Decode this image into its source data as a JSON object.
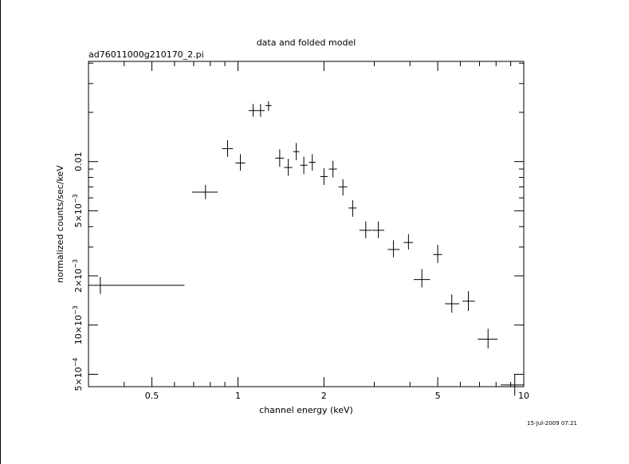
{
  "chart_data": {
    "type": "scatter",
    "title": "data and folded model",
    "subtitle": "ad76011000g210170_2.pi",
    "xlabel": "channel energy (keV)",
    "ylabel": "normalized counts/sec/keV",
    "timestamp": "15-Jul-2009 07:21",
    "x_scale": "log",
    "y_scale": "log",
    "xlim": [
      0.3,
      10
    ],
    "ylim": [
      0.00042,
      0.041
    ],
    "x_major_ticks": [
      {
        "value": 0.5,
        "label": "0.5"
      },
      {
        "value": 1,
        "label": "1"
      },
      {
        "value": 2,
        "label": "2"
      },
      {
        "value": 5,
        "label": "5"
      },
      {
        "value": 10,
        "label": "10"
      }
    ],
    "x_minor_ticks": [
      0.4,
      0.6,
      0.7,
      0.8,
      0.9,
      3,
      4,
      6,
      7,
      8,
      9
    ],
    "y_major_ticks": [
      {
        "value": 0.0005,
        "mant": "5",
        "exp": "−4"
      },
      {
        "value": 0.001,
        "mant": "10",
        "exp": "−3"
      },
      {
        "value": 0.002,
        "mant": "2",
        "exp": "−3"
      },
      {
        "value": 0.005,
        "mant": "5",
        "exp": "−3"
      },
      {
        "value": 0.01,
        "text": "0.01"
      }
    ],
    "y_minor_ticks": [
      0.003,
      0.004,
      0.006,
      0.007,
      0.008,
      0.009,
      0.02,
      0.03,
      0.04
    ],
    "points": [
      {
        "x": 0.33,
        "xlo": 0.3,
        "xhi": 0.65,
        "y": 0.00175,
        "ylo": 0.00155,
        "yhi": 0.00197
      },
      {
        "x": 0.77,
        "xlo": 0.69,
        "xhi": 0.85,
        "y": 0.0065,
        "ylo": 0.0059,
        "yhi": 0.0072
      },
      {
        "x": 0.92,
        "xlo": 0.88,
        "xhi": 0.96,
        "y": 0.012,
        "ylo": 0.0107,
        "yhi": 0.0135
      },
      {
        "x": 1.02,
        "xlo": 0.98,
        "xhi": 1.06,
        "y": 0.0098,
        "ylo": 0.0088,
        "yhi": 0.0111
      },
      {
        "x": 1.13,
        "xlo": 1.09,
        "xhi": 1.17,
        "y": 0.0205,
        "ylo": 0.0188,
        "yhi": 0.0225
      },
      {
        "x": 1.2,
        "xlo": 1.17,
        "xhi": 1.24,
        "y": 0.0205,
        "ylo": 0.0188,
        "yhi": 0.0225
      },
      {
        "x": 1.28,
        "xlo": 1.25,
        "xhi": 1.31,
        "y": 0.022,
        "ylo": 0.0204,
        "yhi": 0.0234
      },
      {
        "x": 1.4,
        "xlo": 1.35,
        "xhi": 1.45,
        "y": 0.0105,
        "ylo": 0.0093,
        "yhi": 0.0119
      },
      {
        "x": 1.5,
        "xlo": 1.45,
        "xhi": 1.55,
        "y": 0.0092,
        "ylo": 0.0082,
        "yhi": 0.0104
      },
      {
        "x": 1.6,
        "xlo": 1.56,
        "xhi": 1.64,
        "y": 0.0115,
        "ylo": 0.0102,
        "yhi": 0.013
      },
      {
        "x": 1.7,
        "xlo": 1.65,
        "xhi": 1.75,
        "y": 0.0095,
        "ylo": 0.0084,
        "yhi": 0.0107
      },
      {
        "x": 1.82,
        "xlo": 1.77,
        "xhi": 1.87,
        "y": 0.0099,
        "ylo": 0.0088,
        "yhi": 0.0111
      },
      {
        "x": 2.0,
        "xlo": 1.94,
        "xhi": 2.06,
        "y": 0.0081,
        "ylo": 0.0072,
        "yhi": 0.0091
      },
      {
        "x": 2.15,
        "xlo": 2.08,
        "xhi": 2.22,
        "y": 0.009,
        "ylo": 0.008,
        "yhi": 0.0101
      },
      {
        "x": 2.33,
        "xlo": 2.25,
        "xhi": 2.41,
        "y": 0.007,
        "ylo": 0.0062,
        "yhi": 0.0078
      },
      {
        "x": 2.52,
        "xlo": 2.44,
        "xhi": 2.6,
        "y": 0.0052,
        "ylo": 0.0046,
        "yhi": 0.0058
      },
      {
        "x": 2.8,
        "xlo": 2.66,
        "xhi": 2.94,
        "y": 0.0038,
        "ylo": 0.0034,
        "yhi": 0.0043
      },
      {
        "x": 3.1,
        "xlo": 2.95,
        "xhi": 3.25,
        "y": 0.0038,
        "ylo": 0.0034,
        "yhi": 0.0043
      },
      {
        "x": 3.5,
        "xlo": 3.34,
        "xhi": 3.68,
        "y": 0.0029,
        "ylo": 0.0026,
        "yhi": 0.0033
      },
      {
        "x": 3.95,
        "xlo": 3.8,
        "xhi": 4.1,
        "y": 0.0032,
        "ylo": 0.0029,
        "yhi": 0.0036
      },
      {
        "x": 4.4,
        "xlo": 4.12,
        "xhi": 4.7,
        "y": 0.0019,
        "ylo": 0.0017,
        "yhi": 0.0022
      },
      {
        "x": 5.0,
        "xlo": 4.82,
        "xhi": 5.18,
        "y": 0.0027,
        "ylo": 0.0024,
        "yhi": 0.0031
      },
      {
        "x": 5.6,
        "xlo": 5.3,
        "xhi": 5.95,
        "y": 0.00135,
        "ylo": 0.00119,
        "yhi": 0.00154
      },
      {
        "x": 6.4,
        "xlo": 6.1,
        "xhi": 6.75,
        "y": 0.0014,
        "ylo": 0.00122,
        "yhi": 0.00161
      },
      {
        "x": 7.5,
        "xlo": 6.9,
        "xhi": 8.1,
        "y": 0.00082,
        "ylo": 0.00072,
        "yhi": 0.00095
      },
      {
        "x": 9.3,
        "xlo": 8.3,
        "xhi": 10.0,
        "y": 0.00043,
        "ylo": 0.00037,
        "yhi": 0.0005
      }
    ]
  }
}
